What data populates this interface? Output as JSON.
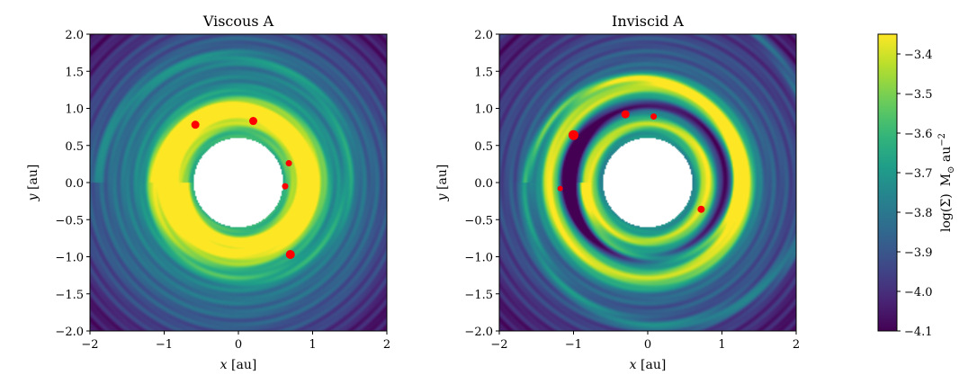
{
  "chart_data": [
    {
      "type": "heatmap",
      "title": "Viscous A",
      "xlabel_var": "x",
      "xlabel_unit": " [au]",
      "ylabel_var": "y",
      "ylabel_unit": " [au]",
      "xlim": [
        -2,
        2
      ],
      "ylim": [
        -2,
        2
      ],
      "xticks": [
        "−2",
        "−1",
        "0",
        "1",
        "2"
      ],
      "yticks": [
        "2.0",
        "1.5",
        "1.0",
        "0.5",
        "0.0",
        "−0.5",
        "−1.0",
        "−1.5",
        "−2.0"
      ],
      "field": {
        "inner_hole_radius": 0.6,
        "rings": [
          {
            "r": 0.95,
            "amp": 0.55,
            "width": 0.22
          }
        ],
        "spirals": [
          {
            "r0": 0.9,
            "pitch": 0.08,
            "amp": 0.22
          }
        ],
        "background": {
          "peak": -3.62,
          "edge": -4.05
        }
      },
      "points": [
        {
          "x": -0.58,
          "y": 0.78,
          "size": 4.5
        },
        {
          "x": 0.2,
          "y": 0.83,
          "size": 4.5
        },
        {
          "x": 0.68,
          "y": 0.26,
          "size": 3.5
        },
        {
          "x": 0.63,
          "y": -0.05,
          "size": 3.5
        },
        {
          "x": 0.7,
          "y": -0.97,
          "size": 5
        }
      ]
    },
    {
      "type": "heatmap",
      "title": "Inviscid A",
      "xlabel_var": "x",
      "xlabel_unit": " [au]",
      "ylabel_var": "y",
      "ylabel_unit": " [au]",
      "xlim": [
        -2,
        2
      ],
      "ylim": [
        -2,
        2
      ],
      "xticks": [
        "−2",
        "−1",
        "0",
        "1",
        "2"
      ],
      "yticks": [
        "2.0",
        "1.5",
        "1.0",
        "0.5",
        "0.0",
        "−0.5",
        "−1.0",
        "−1.5",
        "−2.0"
      ],
      "field": {
        "inner_hole_radius": 0.6,
        "rings": [
          {
            "r": 0.8,
            "amp": 0.45,
            "width": 0.1
          },
          {
            "r": 1.05,
            "amp": -0.35,
            "width": 0.08
          },
          {
            "r": 1.3,
            "amp": 0.55,
            "width": 0.15
          }
        ],
        "spirals": [
          {
            "r0": 1.2,
            "pitch": 0.1,
            "amp": 0.3
          }
        ],
        "gap": {
          "angle_deg": 175,
          "r": 1.1,
          "amp": -0.45
        },
        "background": {
          "peak": -3.72,
          "edge": -4.05
        }
      },
      "points": [
        {
          "x": -1.0,
          "y": 0.64,
          "size": 5.5
        },
        {
          "x": -0.3,
          "y": 0.92,
          "size": 4.5
        },
        {
          "x": 0.08,
          "y": 0.89,
          "size": 3.5
        },
        {
          "x": -1.18,
          "y": -0.08,
          "size": 3
        },
        {
          "x": 0.72,
          "y": -0.36,
          "size": 4
        }
      ]
    }
  ],
  "colorbar": {
    "title": "log(Σ) M⊙ au⁻²",
    "label": "log(Σ)",
    "unit_main": "M",
    "unit_sub": "⊙",
    "unit_rest": " au",
    "unit_exp": "−2",
    "vmin": -4.1,
    "vmax": -3.35,
    "colormap": "viridis",
    "ticks": [
      "−3.4",
      "−3.5",
      "−3.6",
      "−3.7",
      "−3.8",
      "−3.9",
      "−4.0",
      "−4.1"
    ]
  },
  "colors": {
    "points": "#ff0000"
  }
}
